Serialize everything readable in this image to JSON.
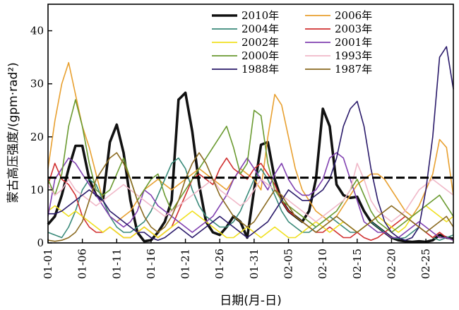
{
  "chart_data": {
    "type": "line",
    "xlabel": "日期(月-日)",
    "ylabel": "蒙古高压强度/(gpm·rad²)",
    "x_ticks": [
      "01-01",
      "01-06",
      "01-11",
      "01-16",
      "01-21",
      "01-26",
      "01-31",
      "02-05",
      "02-10",
      "02-15",
      "02-20",
      "02-25"
    ],
    "x_range": [
      1,
      60
    ],
    "ylim": [
      0,
      45
    ],
    "y_ticks": [
      0,
      10,
      20,
      30,
      40
    ],
    "reference_line": 12.3,
    "legend_placement": "top-right",
    "series": [
      {
        "name": "2010年",
        "color": "#111111",
        "width": 3.6,
        "values": [
          3.5,
          5,
          9,
          14,
          18.3,
          18.3,
          12,
          9,
          8,
          19,
          22.3,
          17,
          8,
          2,
          0.3,
          0.5,
          2,
          4,
          8,
          27,
          28.3,
          21,
          11,
          4,
          2,
          1.5,
          3,
          5,
          4,
          1,
          10,
          18.5,
          19,
          12,
          8,
          6,
          5,
          4,
          6,
          12,
          25.3,
          22,
          11,
          9,
          8.5,
          8.7,
          6,
          4,
          3,
          2,
          1,
          0.5,
          0.3,
          0.2,
          0.3,
          0.2,
          0.5,
          1.5,
          1,
          0.8
        ]
      },
      {
        "name": "2006年",
        "color": "#e8a030",
        "width": 1.6,
        "values": [
          14,
          23,
          30,
          34,
          28,
          22,
          18,
          13,
          8,
          5,
          4,
          5,
          6,
          8,
          10,
          11,
          12,
          11,
          10,
          11,
          12,
          13,
          14,
          13,
          12,
          11,
          10,
          12,
          14,
          13,
          12,
          10,
          20,
          28,
          26,
          20,
          14,
          10,
          8,
          6,
          5,
          4,
          5,
          7,
          9,
          11,
          12,
          13,
          13,
          12,
          10,
          8,
          6,
          5,
          7,
          10,
          13,
          19.5,
          18,
          9
        ]
      },
      {
        "name": "2004年",
        "color": "#3a8a7a",
        "width": 1.6,
        "values": [
          2,
          1.5,
          1,
          3,
          6,
          10,
          12,
          11,
          8,
          5,
          3,
          2,
          2,
          3,
          4,
          6,
          9,
          12,
          15,
          16,
          14,
          10,
          7,
          5,
          4,
          3,
          3,
          4,
          6,
          9,
          12,
          14,
          12,
          9,
          6,
          4,
          3,
          2,
          2,
          3,
          4,
          5,
          4,
          3,
          2,
          2,
          3,
          4,
          3,
          2,
          1,
          0.8,
          1,
          2,
          3,
          2,
          1,
          0.5,
          1,
          1.5
        ]
      },
      {
        "name": "2003年",
        "color": "#d03030",
        "width": 1.6,
        "values": [
          11,
          15,
          12,
          11,
          9,
          5,
          3,
          2,
          2,
          3,
          2,
          1,
          1,
          2,
          3,
          2,
          1,
          2,
          3,
          6,
          9,
          12,
          13,
          12,
          11,
          14,
          16,
          14,
          13,
          12,
          14,
          15,
          13,
          11,
          8,
          6,
          5,
          4,
          3,
          2,
          2,
          3,
          2,
          1,
          1,
          2,
          1,
          0.5,
          1,
          2,
          3,
          4,
          5,
          4,
          3,
          2,
          1,
          2,
          1,
          0.5
        ]
      },
      {
        "name": "2002年",
        "color": "#f0e020",
        "width": 1.6,
        "values": [
          6,
          7,
          6,
          5,
          6,
          5,
          4,
          3,
          2,
          3,
          2,
          1,
          1,
          2,
          3,
          2,
          1,
          2,
          3,
          4,
          5,
          6,
          5,
          4,
          3,
          2,
          1,
          1,
          2,
          3,
          2,
          1,
          2,
          3,
          2,
          1,
          1,
          2,
          3,
          4,
          3,
          2,
          3,
          4,
          3,
          2,
          3,
          4,
          5,
          4,
          3,
          2,
          3,
          5,
          6,
          7,
          6,
          5,
          4,
          5
        ]
      },
      {
        "name": "2001年",
        "color": "#8040b0",
        "width": 1.6,
        "values": [
          5,
          12,
          14,
          16,
          15,
          13,
          11,
          9,
          7,
          5,
          4,
          3,
          4,
          6,
          10,
          9,
          7,
          6,
          5,
          4,
          3,
          2,
          3,
          4,
          5,
          7,
          9,
          12,
          14,
          16,
          14,
          12,
          10,
          13,
          15,
          12,
          10,
          9,
          9,
          10,
          12,
          16,
          17,
          16,
          12,
          8,
          4,
          3,
          2,
          2,
          1,
          1,
          2,
          3,
          4,
          3,
          2,
          1,
          1,
          0.5
        ]
      },
      {
        "name": "2000年",
        "color": "#6a9a30",
        "width": 1.6,
        "values": [
          12,
          9,
          13,
          22,
          27,
          22,
          15,
          10,
          9,
          10,
          13,
          16,
          12,
          8,
          10,
          12,
          13,
          9,
          6,
          8,
          10,
          12,
          14,
          16,
          18,
          20,
          22,
          18,
          13,
          15,
          25,
          24,
          15,
          10,
          8,
          7,
          6,
          5,
          4,
          3,
          4,
          5,
          6,
          8,
          10,
          12,
          9,
          6,
          4,
          3,
          2,
          3,
          4,
          5,
          6,
          7,
          8,
          9,
          7,
          5
        ]
      },
      {
        "name": "1993年",
        "color": "#f0b8c8",
        "width": 1.6,
        "values": [
          11,
          9,
          10,
          12,
          10,
          9,
          8,
          7,
          8,
          9,
          10,
          11,
          10,
          9,
          8,
          7,
          6,
          5,
          6,
          7,
          8,
          9,
          10,
          11,
          12,
          10,
          9,
          8,
          7,
          8,
          10,
          12,
          11,
          10,
          9,
          8,
          7,
          6,
          5,
          4,
          5,
          6,
          7,
          8,
          10,
          15,
          12,
          8,
          6,
          5,
          4,
          5,
          6,
          8,
          10,
          11,
          12,
          11,
          10,
          9
        ]
      },
      {
        "name": "1988年",
        "color": "#2a1a6a",
        "width": 1.6,
        "values": [
          5.5,
          5.5,
          6,
          7,
          8,
          9,
          10,
          9,
          8,
          6,
          5,
          4,
          3,
          2,
          2,
          1,
          0.5,
          1,
          2,
          3,
          2,
          1,
          2,
          3,
          4,
          5,
          4,
          3,
          2,
          1,
          2,
          3,
          4,
          6,
          8,
          10,
          9,
          8,
          8,
          9,
          10,
          12,
          16,
          22,
          25.3,
          26.7,
          22,
          14,
          8,
          4,
          2,
          1,
          0.5,
          1,
          3,
          10,
          20,
          35,
          37,
          29
        ]
      },
      {
        "name": "1987年",
        "color": "#8a6a20",
        "width": 1.6,
        "values": [
          0.5,
          0.3,
          0.5,
          1,
          2,
          4,
          8,
          12,
          14,
          16,
          17,
          15,
          12,
          8,
          5,
          3,
          2,
          3,
          5,
          8,
          12,
          15,
          17,
          15,
          12,
          9,
          7,
          5,
          4,
          3,
          4,
          6,
          8,
          10,
          9,
          7,
          5,
          4,
          3,
          2,
          3,
          4,
          5,
          4,
          3,
          2,
          3,
          4,
          5,
          6,
          7,
          6,
          5,
          4,
          3,
          2,
          3,
          4,
          5,
          3
        ]
      }
    ]
  }
}
